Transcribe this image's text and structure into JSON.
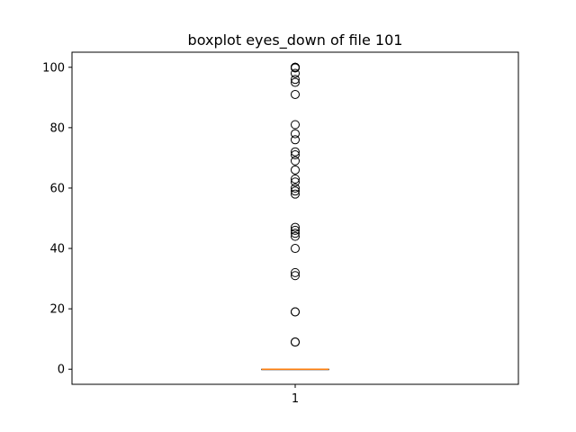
{
  "chart_data": {
    "type": "box",
    "title": "boxplot eyes_down of file 101",
    "xlabel": "",
    "ylabel": "",
    "categories": [
      "1"
    ],
    "ylim": [
      -5,
      105
    ],
    "yticks": [
      0,
      20,
      40,
      60,
      80,
      100
    ],
    "grid": false,
    "boxes": [
      {
        "category": "1",
        "min": 0,
        "q1": 0,
        "median": 0,
        "q3": 0,
        "max": 0,
        "outliers": [
          100,
          100,
          100,
          99.8,
          98,
          96,
          95,
          91,
          81,
          78,
          76,
          72,
          71,
          69,
          66,
          63,
          62,
          60,
          59,
          58,
          47,
          46,
          45,
          44,
          40,
          32,
          31,
          19,
          19,
          9,
          9
        ]
      }
    ],
    "colors": {
      "median": "#ff7f0e",
      "box": "#000000",
      "outlier": "#000000"
    }
  }
}
